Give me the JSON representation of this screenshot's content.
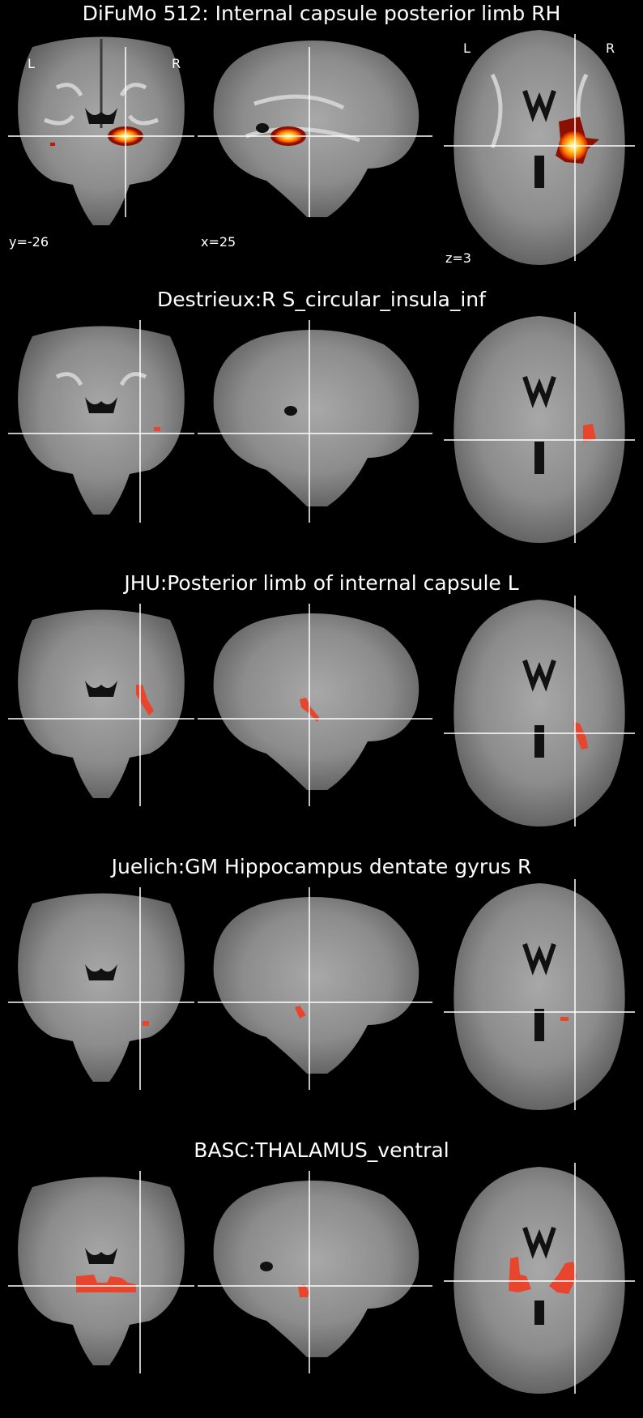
{
  "panels": [
    {
      "title": "DiFuMo 512: Internal capsule posterior limb RH",
      "overlay": "heat",
      "labels": {
        "left": "L",
        "right": "R",
        "coords": [
          "y=-26",
          "x=25",
          "z=3"
        ]
      }
    },
    {
      "title": "Destrieux:R S_circular_insula_inf",
      "overlay": "red-small"
    },
    {
      "title": "JHU:Posterior limb of internal capsule L",
      "overlay": "red-streak"
    },
    {
      "title": "Juelich:GM Hippocampus dentate gyrus R",
      "overlay": "red-tiny"
    },
    {
      "title": "BASC:THALAMUS_ventral",
      "overlay": "red-large"
    }
  ],
  "colors": {
    "background": "#000000",
    "crosshair": "#ffffff",
    "overlay_red": "#e8452e",
    "heat_core": "#ffffb0",
    "heat_mid": "#ffb000",
    "heat_outer": "#d62000"
  }
}
